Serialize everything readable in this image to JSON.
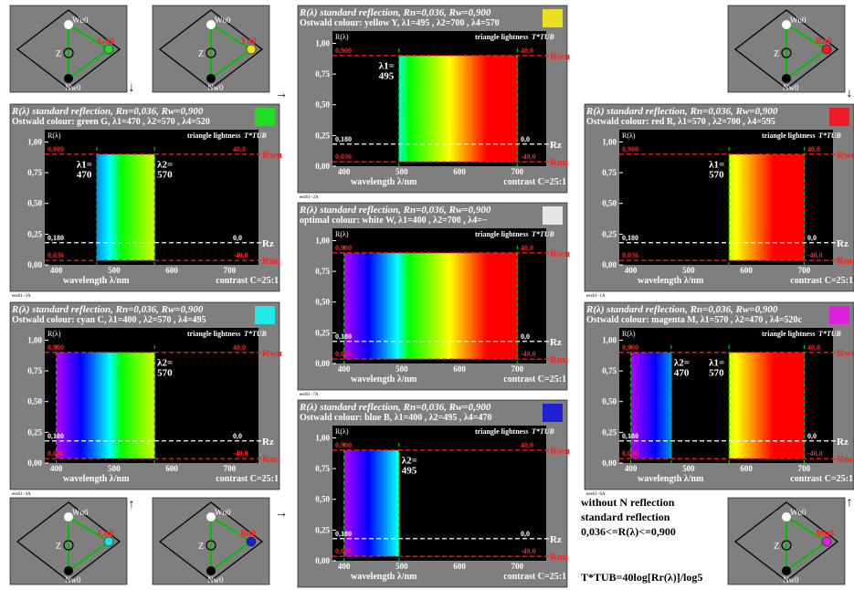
{
  "colors": {
    "panel_bg": "#7f7f7f",
    "plot_bg": "#000000",
    "white": "#ffffff",
    "red": "#ff2020",
    "green": "#00c000"
  },
  "common": {
    "ylabel": "R(λ)",
    "header_right": "triangle lightness",
    "tstar": "T*TUB",
    "xlabel": "wavelength λ/nm",
    "contrast": "contrast C=25:1",
    "yticks": [
      "0,00",
      "0,25",
      "0,50",
      "0,75",
      "1,00"
    ],
    "xticks": [
      "400",
      "500",
      "600",
      "700"
    ],
    "line_labels": {
      "top_left": "0,900",
      "top_right": "40,0",
      "mid_left": "0,180",
      "mid_right": "0,0",
      "bot_left": "0,036",
      "bot_right": "-40,0"
    },
    "right_labels": {
      "rwu": "Rwu",
      "rz": "Rz",
      "rnu": "Rnu"
    }
  },
  "charts": [
    {
      "id": "3A",
      "title": "R(λ) standard reflection, Rn=0,036, Rw=0,900",
      "subtitle": "Ostwald colour: green G, λ1=470 , λ2=570 , λ4=520",
      "swatch": "#22dd22",
      "code": "eez61−3A",
      "bands": [
        [
          470,
          570
        ]
      ],
      "labels": [
        {
          "text": "λ1=",
          "text2": "470",
          "at": 470,
          "side": "left"
        },
        {
          "text": "λ2=",
          "text2": "570",
          "at": 570,
          "side": "right"
        }
      ]
    },
    {
      "id": "4A",
      "title": "R(λ) standard reflection, Rn=0,036, Rw=0,900",
      "subtitle": "Ostwald colour: cyan C, λ1=400 , λ2=570 , λ4=495",
      "swatch": "#22e8e8",
      "code": "eez61−4A",
      "bands": [
        [
          400,
          570
        ]
      ],
      "labels": [
        {
          "text": "λ2=",
          "text2": "570",
          "at": 570,
          "side": "right"
        }
      ]
    },
    {
      "id": "2A",
      "title": "R(λ) standard reflection, Rn=0,036, Rw=0,900",
      "subtitle": "Ostwald colour: yellow Y, λ1=495 , λ2=700 , λ4=570",
      "swatch": "#e8e020",
      "code": "eez61−2A",
      "bands": [
        [
          495,
          700
        ]
      ],
      "labels": [
        {
          "text": "λ1=",
          "text2": "495",
          "at": 495,
          "side": "left"
        }
      ]
    },
    {
      "id": "7A",
      "title": "R(λ) standard reflection, Rn=0,036, Rw=0,900",
      "subtitle": "optimal colour: white W, λ1=400 , λ2=700 , λ4=−",
      "swatch": "#e6e6e6",
      "code": "eez61−7A",
      "bands": [
        [
          400,
          700
        ]
      ],
      "labels": []
    },
    {
      "id": "5A",
      "title": "R(λ) standard reflection, Rn=0,036, Rw=0,900",
      "subtitle": "Ostwald colour: blue B, λ1=400 , λ2=495 , λ4=470",
      "swatch": "#2020d0",
      "code": "eez61−5A",
      "bands": [
        [
          400,
          495
        ]
      ],
      "labels": [
        {
          "text": "λ2=",
          "text2": "495",
          "at": 495,
          "side": "right"
        }
      ]
    },
    {
      "id": "1A",
      "title": "R(λ) standard reflection, Rn=0,036, Rw=0,900",
      "subtitle": "Ostwald colour: red R, λ1=570 , λ2=700 , λ4=595",
      "swatch": "#ee1c24",
      "code": "eez61−1A",
      "bands": [
        [
          570,
          700
        ]
      ],
      "labels": [
        {
          "text": "λ1=",
          "text2": "570",
          "at": 570,
          "side": "left"
        }
      ]
    },
    {
      "id": "6A",
      "title": "R(λ) standard reflection, Rn=0,036, Rw=0,900",
      "subtitle": "Ostwald colour: magenta M, λ1=570 , λ2=470 , λ4=520c",
      "swatch": "#e020e0",
      "code": "eez61−6A",
      "bands": [
        [
          400,
          470
        ],
        [
          570,
          700
        ]
      ],
      "labels": [
        {
          "text": "λ2=",
          "text2": "470",
          "at": 470,
          "side": "right"
        },
        {
          "text": "λ1=",
          "text2": "570",
          "at": 570,
          "side": "left"
        }
      ]
    }
  ],
  "triangles": [
    {
      "id": "tl",
      "colour_label": "Gn0",
      "dot": "#30d030",
      "arrow": "↓"
    },
    {
      "id": "tm",
      "colour_label": "Yn0",
      "dot": "#f0e020",
      "arrow": "→"
    },
    {
      "id": "tr",
      "colour_label": "Rn0",
      "dot": "#ee1c24",
      "arrow": "↓"
    },
    {
      "id": "bl",
      "colour_label": "Cn0",
      "dot": "#20e0e0",
      "arrow": "↑"
    },
    {
      "id": "bm",
      "colour_label": "Bn0",
      "dot": "#2020d0",
      "arrow": "→"
    },
    {
      "id": "br",
      "colour_label": "Mn0",
      "dot": "#e020e0",
      "arrow": "↑"
    }
  ],
  "triangle_labels": {
    "w": "Wn0",
    "w2": "Wn0",
    "n": "Nw0",
    "z": "Z"
  },
  "notes": {
    "line1": "without N reflection",
    "line2": "standard reflection",
    "line3": "0,036<=R(λ)<=0,900",
    "formula": "T*TUB=40log[Rr(λ)]/log5"
  }
}
